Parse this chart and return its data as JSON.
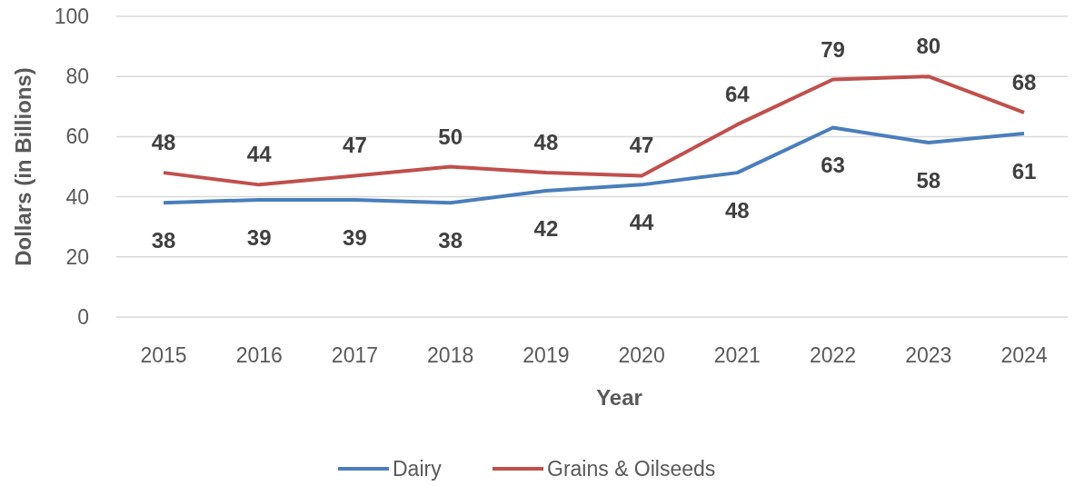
{
  "chart_data": {
    "type": "line",
    "xlabel": "Year",
    "ylabel": "Dollars (in Billions)",
    "categories": [
      "2015",
      "2016",
      "2017",
      "2018",
      "2019",
      "2020",
      "2021",
      "2022",
      "2023",
      "2024"
    ],
    "series": [
      {
        "name": "Dairy",
        "color": "#4a7ebb",
        "values": [
          38,
          39,
          39,
          38,
          42,
          44,
          48,
          63,
          58,
          61
        ]
      },
      {
        "name": "Grains & Oilseeds",
        "color": "#c0504d",
        "values": [
          48,
          44,
          47,
          50,
          48,
          47,
          64,
          79,
          80,
          68
        ]
      }
    ],
    "ylim": [
      0,
      100
    ],
    "yticks": [
      0,
      20,
      40,
      60,
      80,
      100
    ],
    "grid": "y",
    "legend": "bottom",
    "data_labels": true,
    "marker": "none"
  }
}
